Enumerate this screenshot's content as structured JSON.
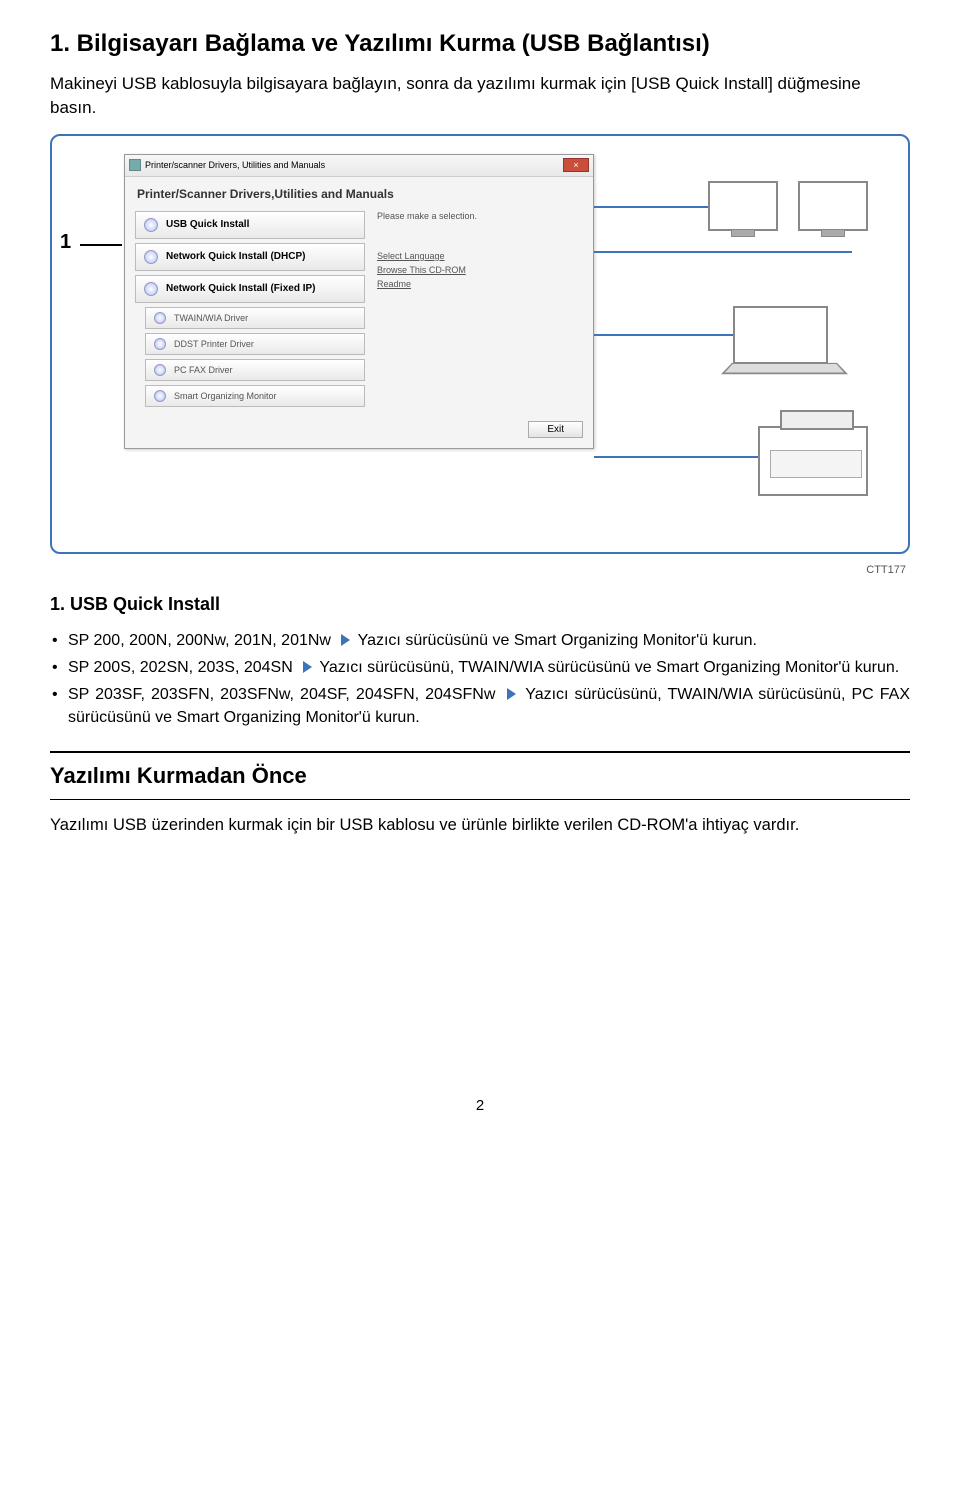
{
  "title": "1. Bilgisayarı Bağlama ve Yazılımı Kurma (USB Bağlantısı)",
  "intro": "Makineyi USB kablosuyla bilgisayara bağlayın, sonra da yazılımı kurmak için [USB Quick Install] düğmesine basın.",
  "step_number": "1",
  "installer": {
    "titlebar": "Printer/scanner Drivers, Utilities and Manuals",
    "close": "×",
    "heading": "Printer/Scanner Drivers,Utilities and Manuals",
    "buttons": {
      "usb": "USB Quick Install",
      "dhcp": "Network Quick Install (DHCP)",
      "fixed": "Network Quick Install (Fixed IP)",
      "twain": "TWAIN/WIA Driver",
      "ddst": "DDST Printer Driver",
      "pcfax": "PC FAX Driver",
      "som": "Smart Organizing Monitor"
    },
    "hint": "Please make a selection.",
    "links": {
      "lang": "Select Language",
      "browse": "Browse This CD-ROM",
      "readme": "Readme"
    },
    "exit": "Exit"
  },
  "image_code": "CTT177",
  "subheading": "1. USB Quick Install",
  "bullets": {
    "b1a": "SP 200, 200N, 200Nw, 201N, 201Nw ",
    "b1b": " Yazıcı sürücüsünü ve Smart Organizing Monitor'ü kurun.",
    "b2a": "SP 200S, 202SN, 203S, 204SN ",
    "b2b": " Yazıcı sürücüsünü, TWAIN/WIA sürücüsünü ve Smart Organizing Monitor'ü kurun.",
    "b3a": "SP 203SF, 203SFN, 203SFNw, 204SF, 204SFN, 204SFNw ",
    "b3b": " Yazıcı sürücüsünü, TWAIN/WIA sürücüsünü, PC FAX sürücüsünü ve Smart Organizing Monitor'ü kurun."
  },
  "section2": {
    "title": "Yazılımı Kurmadan Önce",
    "body": "Yazılımı USB üzerinden kurmak için bir USB kablosu ve ürünle birlikte verilen CD-ROM'a ihtiyaç vardır."
  },
  "page_number": "2"
}
